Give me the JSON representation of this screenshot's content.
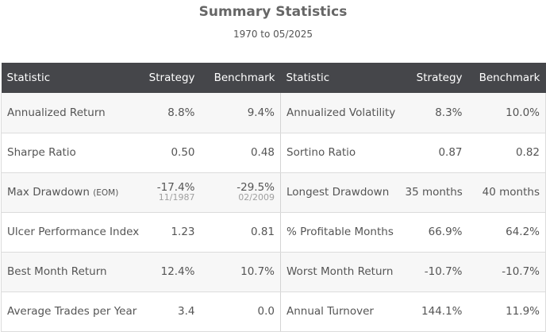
{
  "header": {
    "title": "Summary Statistics",
    "subtitle": "1970 to 05/2025"
  },
  "columns": [
    "Statistic",
    "Strategy",
    "Benchmark",
    "Statistic",
    "Strategy",
    "Benchmark"
  ],
  "rows": [
    {
      "left": {
        "label": "Annualized Return",
        "strategy": "8.8%",
        "benchmark": "9.4%"
      },
      "right": {
        "label": "Annualized Volatility",
        "strategy": "8.3%",
        "benchmark": "10.0%"
      }
    },
    {
      "left": {
        "label": "Sharpe Ratio",
        "strategy": "0.50",
        "benchmark": "0.48"
      },
      "right": {
        "label": "Sortino Ratio",
        "strategy": "0.87",
        "benchmark": "0.82"
      }
    },
    {
      "left": {
        "label": "Max Drawdown",
        "note": "(EOM)",
        "strategy": "-17.4%",
        "strategy_date": "11/1987",
        "benchmark": "-29.5%",
        "benchmark_date": "02/2009"
      },
      "right": {
        "label": "Longest Drawdown",
        "strategy": "35 months",
        "benchmark": "40 months"
      }
    },
    {
      "left": {
        "label": "Ulcer Performance Index",
        "strategy": "1.23",
        "benchmark": "0.81"
      },
      "right": {
        "label": "% Profitable Months",
        "strategy": "66.9%",
        "benchmark": "64.2%"
      }
    },
    {
      "left": {
        "label": "Best Month Return",
        "strategy": "12.4%",
        "benchmark": "10.7%"
      },
      "right": {
        "label": "Worst Month Return",
        "strategy": "-10.7%",
        "benchmark": "-10.7%"
      }
    },
    {
      "left": {
        "label": "Average Trades per Year",
        "strategy": "3.4",
        "benchmark": "0.0"
      },
      "right": {
        "label": "Annual Turnover",
        "strategy": "144.1%",
        "benchmark": "11.9%"
      }
    }
  ],
  "colors": {
    "header_bg": "#45464a",
    "header_text": "#ffffff",
    "row_alt": "#f7f7f7",
    "text": "#555555",
    "date_text": "#a0a0a0"
  }
}
